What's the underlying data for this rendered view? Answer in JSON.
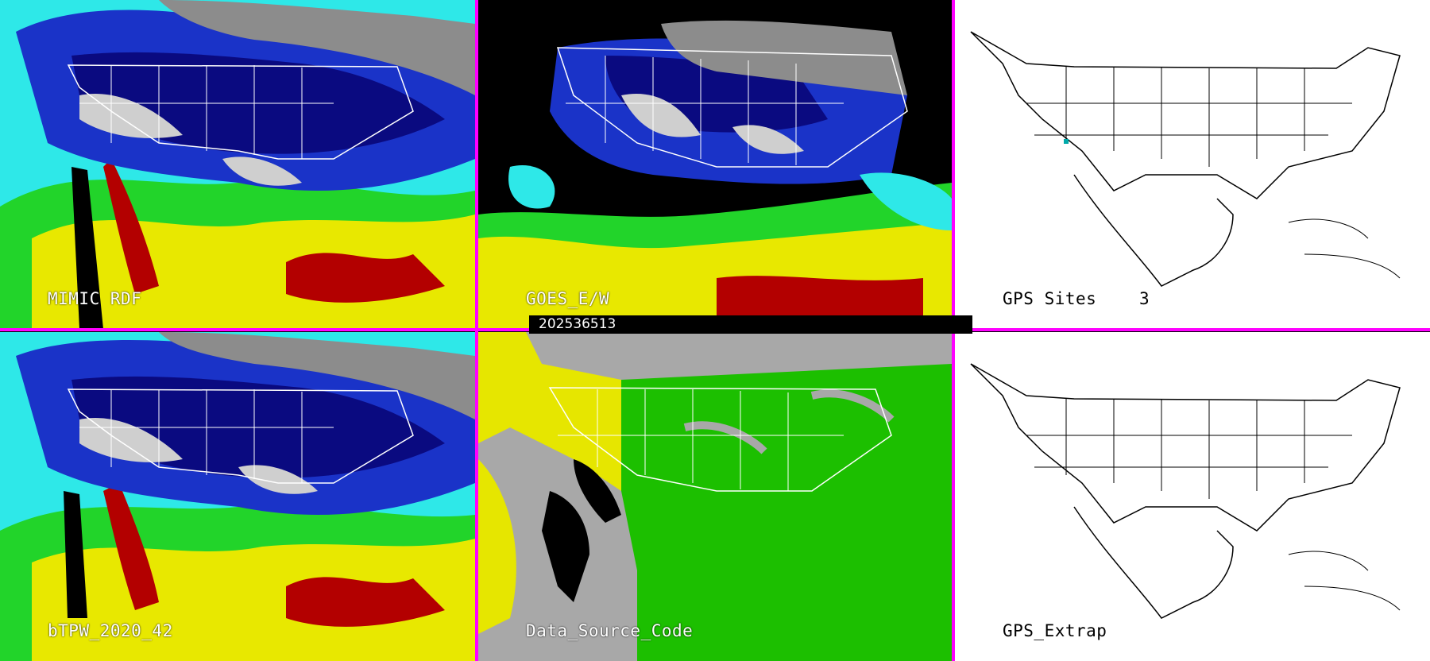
{
  "panels": [
    {
      "id": "mimic",
      "label": "MIMIC RDF",
      "style": "tpw"
    },
    {
      "id": "goes",
      "label": "GOES_E/W",
      "style": "goes"
    },
    {
      "id": "gps-sites",
      "label": "GPS Sites",
      "count": "3",
      "style": "gps"
    },
    {
      "id": "btpw",
      "label": "bTPW_2020_42",
      "style": "tpw"
    },
    {
      "id": "datasource",
      "label": "Data_Source_Code",
      "style": "source"
    },
    {
      "id": "gps-extrap",
      "label": "GPS_Extrap",
      "style": "gps"
    }
  ],
  "timestamp": "202536513",
  "colors": {
    "divider": "#ff00ff",
    "black": "#000000",
    "navy": "#0a0a80",
    "blue": "#1a33c8",
    "cyan": "#2ee8e8",
    "green": "#22d42a",
    "yellow": "#e8e800",
    "red": "#b30000",
    "gray": "#a8a8a8",
    "sourceGreen": "#1cbf00",
    "sourceYellow": "#e6e600"
  }
}
